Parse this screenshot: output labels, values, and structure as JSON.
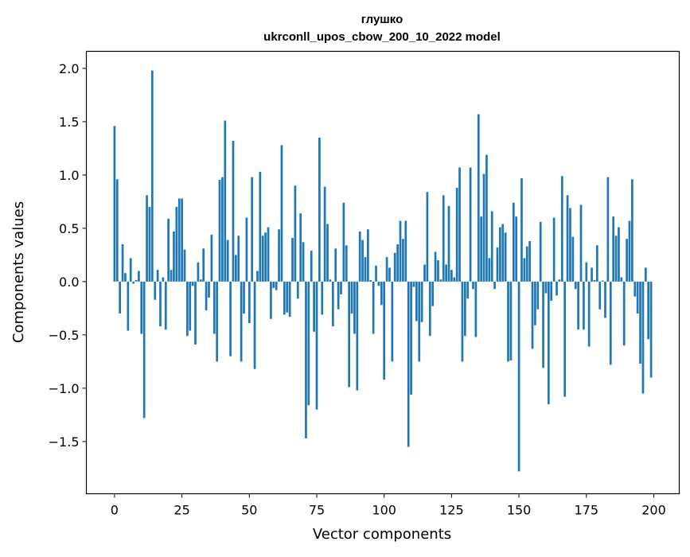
{
  "chart_data": {
    "type": "bar",
    "title_lines": [
      "глушко",
      "ukrconll_upos_cbow_200_10_2022 model"
    ],
    "xlabel": "Vector components",
    "ylabel": "Components values",
    "xlim": [
      -10.45,
      209.45
    ],
    "ylim": [
      -1.99,
      2.16
    ],
    "xticks": [
      0,
      25,
      50,
      75,
      100,
      125,
      150,
      175,
      200
    ],
    "xtick_labels": [
      "0",
      "25",
      "50",
      "75",
      "100",
      "125",
      "150",
      "175",
      "200"
    ],
    "yticks": [
      -1.5,
      -1.0,
      -0.5,
      0.0,
      0.5,
      1.0,
      1.5,
      2.0
    ],
    "ytick_labels": [
      "−1.5",
      "−1.0",
      "−0.5",
      "0.0",
      "0.5",
      "1.0",
      "1.5",
      "2.0"
    ],
    "grid": false,
    "bar_color": "#1f77b4",
    "values": [
      1.46,
      0.96,
      -0.3,
      0.35,
      0.08,
      -0.46,
      0.22,
      -0.02,
      0.015,
      0.1,
      -0.49,
      -1.28,
      0.81,
      0.7,
      1.98,
      -0.17,
      0.11,
      -0.42,
      0.04,
      -0.45,
      0.59,
      0.11,
      0.47,
      0.7,
      0.78,
      0.78,
      0.3,
      -0.51,
      -0.46,
      -0.04,
      -0.59,
      0.18,
      0.02,
      0.31,
      -0.27,
      -0.15,
      0.44,
      -0.49,
      -0.75,
      0.955,
      0.98,
      1.51,
      0.39,
      -0.7,
      1.32,
      0.25,
      0.43,
      -0.75,
      -0.3,
      0.6,
      -0.39,
      0.98,
      -0.82,
      0.1,
      1.03,
      0.43,
      0.46,
      0.51,
      -0.35,
      -0.06,
      -0.08,
      0.49,
      1.28,
      -0.31,
      -0.29,
      -0.33,
      0.41,
      0.9,
      -0.16,
      0.64,
      0.37,
      -1.47,
      -1.16,
      0.29,
      -0.47,
      -1.2,
      1.35,
      -0.31,
      0.89,
      0.54,
      0.02,
      -0.42,
      0.31,
      -0.26,
      -0.12,
      0.74,
      0.34,
      -0.99,
      -0.3,
      -0.49,
      -1.02,
      0.47,
      0.39,
      0.23,
      0.49,
      0.015,
      -0.49,
      0.15,
      -0.04,
      -0.22,
      -0.92,
      0.23,
      0.13,
      -0.75,
      0.27,
      0.35,
      0.57,
      0.4,
      0.57,
      -1.55,
      -1.06,
      -0.05,
      -0.37,
      -0.75,
      -0.38,
      0.16,
      0.84,
      -0.51,
      -0.23,
      0.28,
      0.2,
      0.02,
      0.81,
      0.16,
      0.71,
      0.11,
      0.04,
      0.88,
      1.07,
      -0.75,
      -0.51,
      -0.16,
      1.07,
      -0.07,
      -0.52,
      1.57,
      0.61,
      1.01,
      1.19,
      0.22,
      0.66,
      -0.07,
      0.32,
      0.51,
      0.54,
      0.46,
      -0.75,
      -0.74,
      0.74,
      0.61,
      -1.78,
      0.97,
      0.22,
      0.33,
      0.38,
      -0.63,
      -0.41,
      -0.26,
      0.56,
      -0.81,
      -0.11,
      -1.15,
      -0.18,
      0.6,
      -0.13,
      0.02,
      0.99,
      -1.08,
      0.81,
      0.69,
      0.42,
      -0.07,
      -0.45,
      0.72,
      -0.45,
      0.18,
      -0.61,
      0.13,
      0.015,
      0.34,
      -0.26,
      0.01,
      -0.34,
      0.98,
      -0.78,
      0.61,
      0.43,
      0.51,
      0.04,
      -0.6,
      0.4,
      0.57,
      0.96,
      -0.14,
      -0.3,
      -0.77,
      -1.05,
      0.13,
      -0.54,
      -0.9
    ]
  }
}
